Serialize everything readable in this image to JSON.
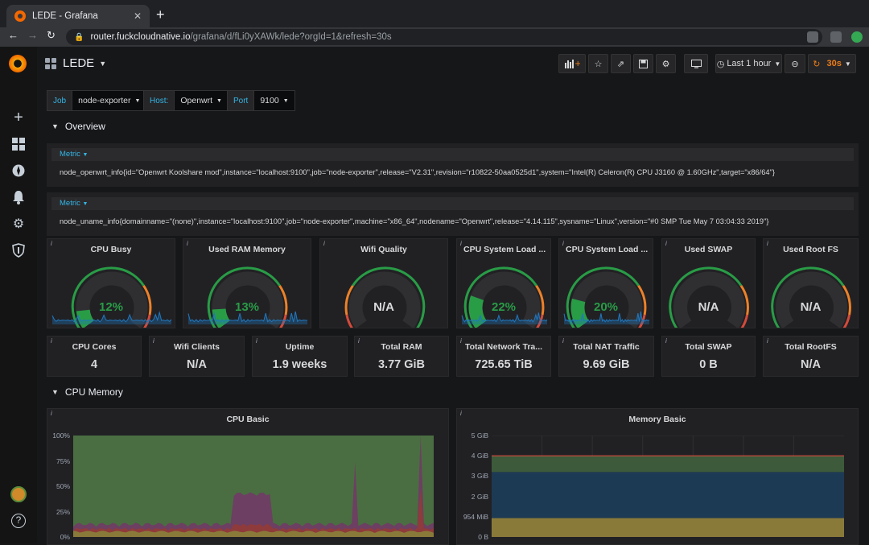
{
  "browser": {
    "tab_title": "LEDE - Grafana",
    "url_host": "router.fuckcloudnative.io",
    "url_path": "/grafana/d/fLi0yXAWk/lede?orgId=1&refresh=30s"
  },
  "dashboard": {
    "title": "LEDE",
    "time_range": "Last 1 hour",
    "refresh": "30s"
  },
  "variables": [
    {
      "label": "Job",
      "value": "node-exporter"
    },
    {
      "label": "Host:",
      "value": "Openwrt"
    },
    {
      "label": "Port",
      "value": "9100"
    }
  ],
  "rows": {
    "overview": "Overview",
    "cpu_memory": "CPU Memory"
  },
  "tables": [
    {
      "header": "Metric",
      "value": "node_openwrt_info{id=\"Openwrt Koolshare mod\",instance=\"localhost:9100\",job=\"node-exporter\",release=\"V2.31\",revision=\"r10822-50aa0525d1\",system=\"Intel(R) Celeron(R) CPU J3160 @ 1.60GHz\",target=\"x86/64\"}"
    },
    {
      "header": "Metric",
      "value": "node_uname_info{domainname=\"(none)\",instance=\"localhost:9100\",job=\"node-exporter\",machine=\"x86_64\",nodename=\"Openwrt\",release=\"4.14.115\",sysname=\"Linux\",version=\"#0 SMP Tue May 7 03:04:33 2019\"}"
    }
  ],
  "gauges": [
    {
      "title": "CPU Busy",
      "value": "12%",
      "fraction": 0.12,
      "color": "#299c46",
      "spark": true
    },
    {
      "title": "Used RAM Memory",
      "value": "13%",
      "fraction": 0.13,
      "color": "#299c46",
      "spark": true
    },
    {
      "title": "Wifi Quality",
      "value": "N/A",
      "fraction": 0,
      "color": "#d8d9da",
      "spark": false,
      "reverse": true
    },
    {
      "title": "CPU System Load ...",
      "value": "22%",
      "fraction": 0.22,
      "color": "#299c46",
      "spark": true
    },
    {
      "title": "CPU System Load ...",
      "value": "20%",
      "fraction": 0.2,
      "color": "#299c46",
      "spark": true
    },
    {
      "title": "Used SWAP",
      "value": "N/A",
      "fraction": 0,
      "color": "#d8d9da",
      "spark": false
    },
    {
      "title": "Used Root FS",
      "value": "N/A",
      "fraction": 0,
      "color": "#d8d9da",
      "spark": false
    }
  ],
  "stats": [
    {
      "title": "CPU Cores",
      "value": "4"
    },
    {
      "title": "Wifi Clients",
      "value": "N/A"
    },
    {
      "title": "Uptime",
      "value": "1.9 weeks"
    },
    {
      "title": "Total RAM",
      "value": "3.77 GiB"
    },
    {
      "title": "Total Network Tra...",
      "value": "725.65 TiB"
    },
    {
      "title": "Total NAT Traffic",
      "value": "9.69 GiB"
    },
    {
      "title": "Total SWAP",
      "value": "0 B"
    },
    {
      "title": "Total RootFS",
      "value": "N/A"
    }
  ],
  "charts": {
    "cpu_basic": {
      "title": "CPU Basic",
      "y_ticks": [
        "100%",
        "75%",
        "50%",
        "25%",
        "0%"
      ]
    },
    "memory_basic": {
      "title": "Memory Basic",
      "y_ticks": [
        "5 GiB",
        "4 GiB",
        "3 GiB",
        "2 GiB",
        "954 MiB",
        "0 B"
      ]
    }
  },
  "colors": {
    "accent": "#eb7b18",
    "link": "#33b5e5",
    "ok": "#299c46",
    "warn": "#ed8128",
    "crit": "#d44a3a"
  }
}
